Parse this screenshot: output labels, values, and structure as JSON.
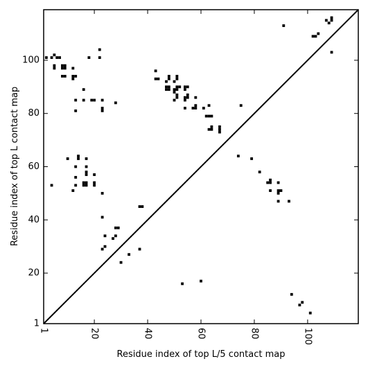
{
  "chart_data": {
    "type": "scatter",
    "marker": "square",
    "xlabel": "Residue index of top L/5 contact map",
    "ylabel": "Residue index of top L contact map",
    "xlim": [
      1,
      119
    ],
    "ylim": [
      1,
      119
    ],
    "x_ticks": [
      1,
      20,
      40,
      60,
      80,
      100
    ],
    "x_tick_labels": [
      "1",
      "20",
      "40",
      "60",
      "80",
      "100"
    ],
    "y_ticks": [
      1,
      20,
      40,
      60,
      80,
      100
    ],
    "y_tick_labels": [
      "1",
      "20",
      "40",
      "60",
      "80",
      "100"
    ],
    "x_tick_rotation_deg": -90,
    "grid": false,
    "reference_line": {
      "from": [
        1,
        1
      ],
      "to": [
        119,
        119
      ]
    },
    "color": "#000000",
    "upper_triangle_points": [
      [
        2,
        101
      ],
      [
        4,
        101
      ],
      [
        5,
        102
      ],
      [
        6,
        101
      ],
      [
        7,
        101
      ],
      [
        5,
        97
      ],
      [
        5,
        98
      ],
      [
        8,
        97
      ],
      [
        8,
        98
      ],
      [
        9,
        97
      ],
      [
        9,
        98
      ],
      [
        8,
        94
      ],
      [
        9,
        94
      ],
      [
        12,
        94
      ],
      [
        13,
        94
      ],
      [
        12,
        93
      ],
      [
        12,
        97
      ],
      [
        18,
        101
      ],
      [
        22,
        101
      ],
      [
        22,
        104
      ],
      [
        13,
        85
      ],
      [
        16,
        85
      ],
      [
        19,
        85
      ],
      [
        20,
        85
      ],
      [
        23,
        85
      ],
      [
        23,
        82
      ],
      [
        23,
        81
      ],
      [
        16,
        89
      ],
      [
        13,
        81
      ],
      [
        28,
        84
      ],
      [
        43,
        96
      ],
      [
        43,
        93
      ],
      [
        44,
        93
      ],
      [
        47,
        90
      ],
      [
        47,
        89
      ],
      [
        48,
        90
      ],
      [
        48,
        89
      ],
      [
        47,
        92
      ],
      [
        48,
        93
      ],
      [
        48,
        94
      ],
      [
        50,
        88
      ],
      [
        50,
        89
      ],
      [
        51,
        89
      ],
      [
        50,
        92
      ],
      [
        51,
        93
      ],
      [
        51,
        94
      ],
      [
        51,
        90
      ],
      [
        52,
        90
      ],
      [
        51,
        87
      ],
      [
        51,
        86
      ],
      [
        50,
        85
      ],
      [
        54,
        90
      ],
      [
        55,
        90
      ],
      [
        54,
        89
      ],
      [
        54,
        86
      ],
      [
        54,
        85
      ],
      [
        55,
        86
      ],
      [
        55,
        87
      ],
      [
        54,
        82
      ],
      [
        57,
        82
      ],
      [
        58,
        82
      ],
      [
        58,
        83
      ],
      [
        58,
        86
      ],
      [
        61,
        82
      ],
      [
        62,
        79
      ],
      [
        63,
        79
      ],
      [
        64,
        79
      ],
      [
        63,
        83
      ],
      [
        63,
        74
      ],
      [
        64,
        74
      ],
      [
        64,
        75
      ],
      [
        67,
        73
      ],
      [
        67,
        74
      ],
      [
        67,
        75
      ],
      [
        75,
        83
      ],
      [
        91,
        113
      ],
      [
        102,
        109
      ],
      [
        103,
        109
      ],
      [
        104,
        110
      ],
      [
        107,
        115
      ],
      [
        108,
        114
      ],
      [
        109,
        115
      ],
      [
        109,
        116
      ],
      [
        109,
        103
      ]
    ],
    "lower_triangle_points": [
      [
        4,
        53
      ],
      [
        10,
        63
      ],
      [
        12,
        51
      ],
      [
        13,
        56
      ],
      [
        13,
        53
      ],
      [
        13,
        60
      ],
      [
        14,
        63
      ],
      [
        14,
        64
      ],
      [
        16,
        53
      ],
      [
        16,
        54
      ],
      [
        17,
        53
      ],
      [
        17,
        54
      ],
      [
        17,
        57
      ],
      [
        17,
        58
      ],
      [
        17,
        60
      ],
      [
        17,
        63
      ],
      [
        20,
        53
      ],
      [
        20,
        54
      ],
      [
        20,
        57
      ],
      [
        23,
        50
      ],
      [
        23,
        41
      ],
      [
        24,
        34
      ],
      [
        24,
        30
      ],
      [
        23,
        29
      ],
      [
        27,
        33
      ],
      [
        28,
        34
      ],
      [
        28,
        37
      ],
      [
        29,
        37
      ],
      [
        30,
        24
      ],
      [
        33,
        27
      ],
      [
        37,
        45
      ],
      [
        38,
        45
      ],
      [
        37,
        29
      ],
      [
        53,
        16
      ],
      [
        60,
        17
      ],
      [
        74,
        64
      ],
      [
        79,
        63
      ],
      [
        82,
        58
      ],
      [
        85,
        54
      ],
      [
        86,
        54
      ],
      [
        86,
        55
      ],
      [
        86,
        51
      ],
      [
        89,
        54
      ],
      [
        89,
        51
      ],
      [
        89,
        50
      ],
      [
        90,
        51
      ],
      [
        89,
        47
      ],
      [
        93,
        47
      ],
      [
        94,
        12
      ],
      [
        97,
        8
      ],
      [
        98,
        9
      ],
      [
        101,
        5
      ]
    ]
  }
}
